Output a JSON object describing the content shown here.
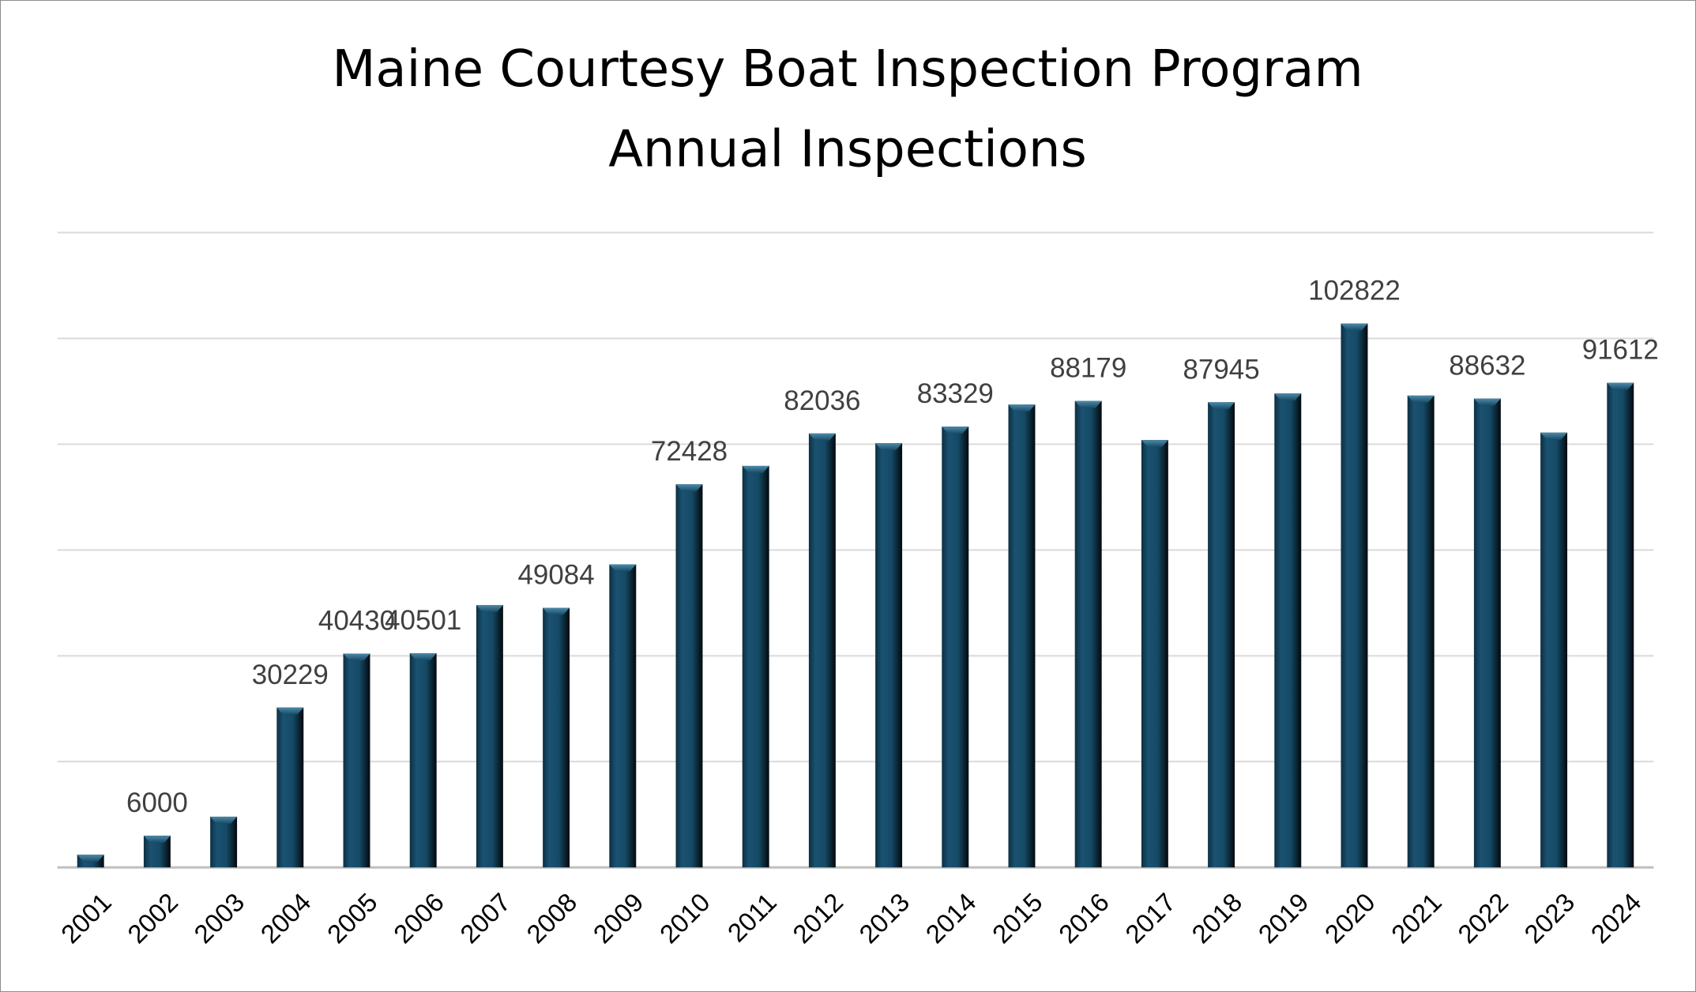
{
  "chart_data": {
    "type": "bar",
    "title": [
      "Maine Courtesy Boat Inspection Program",
      "Annual Inspections"
    ],
    "xlabel": "",
    "ylabel": "",
    "ylim": [
      0,
      120000
    ],
    "y_gridlines": [
      20000,
      40000,
      60000,
      80000,
      100000,
      120000
    ],
    "y_tick_labels_shown": false,
    "grid": true,
    "legend": "none",
    "categories": [
      "2001",
      "2002",
      "2003",
      "2004",
      "2005",
      "2006",
      "2007",
      "2008",
      "2009",
      "2010",
      "2011",
      "2012",
      "2013",
      "2014",
      "2015",
      "2016",
      "2017",
      "2018",
      "2019",
      "2020",
      "2021",
      "2022",
      "2023",
      "2024"
    ],
    "values": [
      2400,
      6000,
      9600,
      30229,
      40430,
      40501,
      49600,
      49084,
      57300,
      72428,
      75900,
      82036,
      80200,
      83329,
      87500,
      88179,
      80800,
      87945,
      89600,
      102822,
      89200,
      88632,
      82200,
      91612
    ],
    "data_labels": [
      null,
      "6000",
      null,
      "30229",
      "40430",
      "40501",
      null,
      "49084",
      null,
      "72428",
      null,
      "82036",
      null,
      "83329",
      null,
      "88179",
      null,
      "87945",
      null,
      "102822",
      null,
      "88632",
      null,
      "91612"
    ],
    "colors": {
      "bar": "#154a66",
      "bar_dark": "#05141c",
      "grid": "#d9d9d9",
      "axis": "#bfbfbf",
      "label": "#404040"
    }
  }
}
